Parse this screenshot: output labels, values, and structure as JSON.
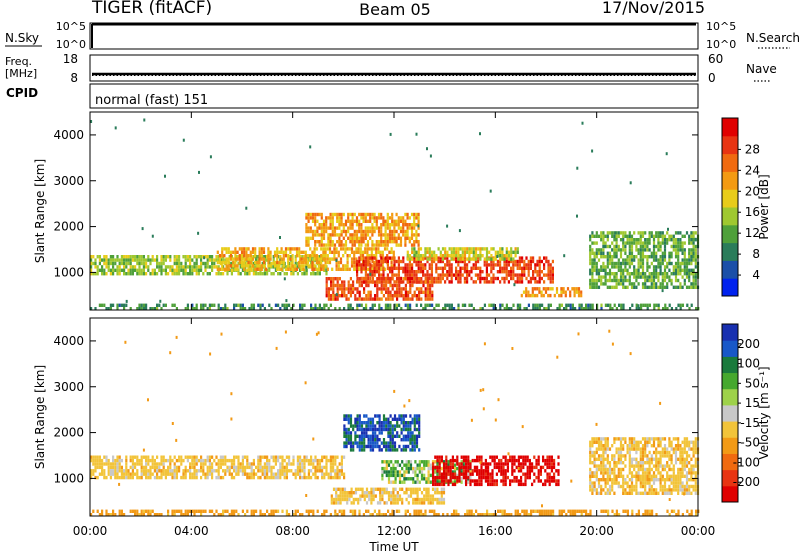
{
  "header": {
    "station": "TIGER (fitACF)",
    "beam": "Beam 05",
    "date": "17/Nov/2015"
  },
  "top_panels": {
    "nsky_label": "N.Sky",
    "nsky_ticks": [
      "10^5",
      "10^0"
    ],
    "nsearch_label": "N.Search",
    "freq_label_1": "Freq.",
    "freq_label_2": "[MHz]",
    "freq_ticks": [
      "18",
      "8"
    ],
    "nave_label": "Nave",
    "nave_ticks": [
      "60",
      "0"
    ],
    "cpid_label": "CPID",
    "cpid_value": "normal (fast) 151"
  },
  "chart_data": [
    {
      "type": "heatmap",
      "title": "",
      "xlabel": "Time UT",
      "ylabel": "Slant Range [km]",
      "x_ticks": [
        "00:00",
        "04:00",
        "08:00",
        "12:00",
        "16:00",
        "20:00",
        "00:00"
      ],
      "x_range_hours": [
        0,
        24
      ],
      "y_ticks": [
        1000,
        2000,
        3000,
        4000
      ],
      "ylim": [
        180,
        4500
      ],
      "colorbar": {
        "label": "Power [dB]",
        "ticks": [
          "4",
          "8",
          "12",
          "16",
          "20",
          "24",
          "28"
        ],
        "colors": [
          "#0022ee",
          "#1b4fa8",
          "#2a7c5a",
          "#4fa03a",
          "#9fc830",
          "#e8cc1a",
          "#f39a12",
          "#f06a10",
          "#e83412",
          "#e00000"
        ]
      },
      "scatter_regions": [
        {
          "name": "near-range band",
          "t": [
            0,
            24
          ],
          "r": [
            200,
            320
          ],
          "level": 8
        },
        {
          "name": "main echo band",
          "t": [
            0,
            9.3
          ],
          "r": [
            1000,
            1380
          ],
          "level": 13
        },
        {
          "name": "main echo band strong",
          "t": [
            5,
            12
          ],
          "r": [
            1100,
            1550
          ],
          "level": 19
        },
        {
          "name": "ionospheric upper band",
          "t": [
            8.5,
            13
          ],
          "r": [
            1600,
            2300
          ],
          "level": 20
        },
        {
          "name": "strong echo region",
          "t": [
            10.5,
            18.3
          ],
          "r": [
            800,
            1350
          ],
          "level": 26
        },
        {
          "name": "lower strong arc",
          "t": [
            9.3,
            13.5
          ],
          "r": [
            430,
            900
          ],
          "level": 25
        },
        {
          "name": "upper green band",
          "t": [
            12.5,
            17
          ],
          "r": [
            1300,
            1550
          ],
          "level": 15
        },
        {
          "name": "late orange band",
          "t": [
            17,
            19.4
          ],
          "r": [
            530,
            680
          ],
          "level": 21
        },
        {
          "name": "evening oblique bands",
          "t": [
            19.7,
            24
          ],
          "r": [
            700,
            1900
          ],
          "level": 11
        }
      ]
    },
    {
      "type": "heatmap",
      "title": "",
      "xlabel": "Time UT",
      "ylabel": "Slant Range [km]",
      "x_ticks": [
        "00:00",
        "04:00",
        "08:00",
        "12:00",
        "16:00",
        "20:00",
        "00:00"
      ],
      "x_range_hours": [
        0,
        24
      ],
      "y_ticks": [
        1000,
        2000,
        3000,
        4000
      ],
      "ylim": [
        180,
        4500
      ],
      "colorbar": {
        "label": "Velocity [m s⁻¹]",
        "ticks": [
          "200",
          "100",
          "50",
          "15",
          "-15",
          "-50",
          "-100",
          "-200"
        ],
        "colors": [
          "#1830b0",
          "#1858c8",
          "#1a7a3c",
          "#46a82e",
          "#9ed24a",
          "#c8c8c8",
          "#f2c43a",
          "#f29a16",
          "#f06a10",
          "#e83412",
          "#e00000"
        ]
      },
      "scatter_regions": [
        {
          "name": "near-range band",
          "t": [
            0,
            24
          ],
          "r": [
            200,
            320
          ],
          "velocity": -20
        },
        {
          "name": "ground scatter band",
          "t": [
            0,
            10
          ],
          "r": [
            1000,
            1500
          ],
          "velocity": 0
        },
        {
          "name": "westward flow",
          "t": [
            10,
            13
          ],
          "r": [
            1600,
            2400
          ],
          "velocity": 180
        },
        {
          "name": "mixed ionospheric",
          "t": [
            11.5,
            15
          ],
          "r": [
            900,
            1400
          ],
          "velocity": 60
        },
        {
          "name": "receding flow",
          "t": [
            13.5,
            18.5
          ],
          "r": [
            900,
            1500
          ],
          "velocity": -200
        },
        {
          "name": "lower ground arc",
          "t": [
            9.5,
            14
          ],
          "r": [
            500,
            800
          ],
          "velocity": 0
        },
        {
          "name": "evening ground bands",
          "t": [
            19.7,
            24
          ],
          "r": [
            700,
            1900
          ],
          "velocity": 0
        }
      ]
    }
  ]
}
